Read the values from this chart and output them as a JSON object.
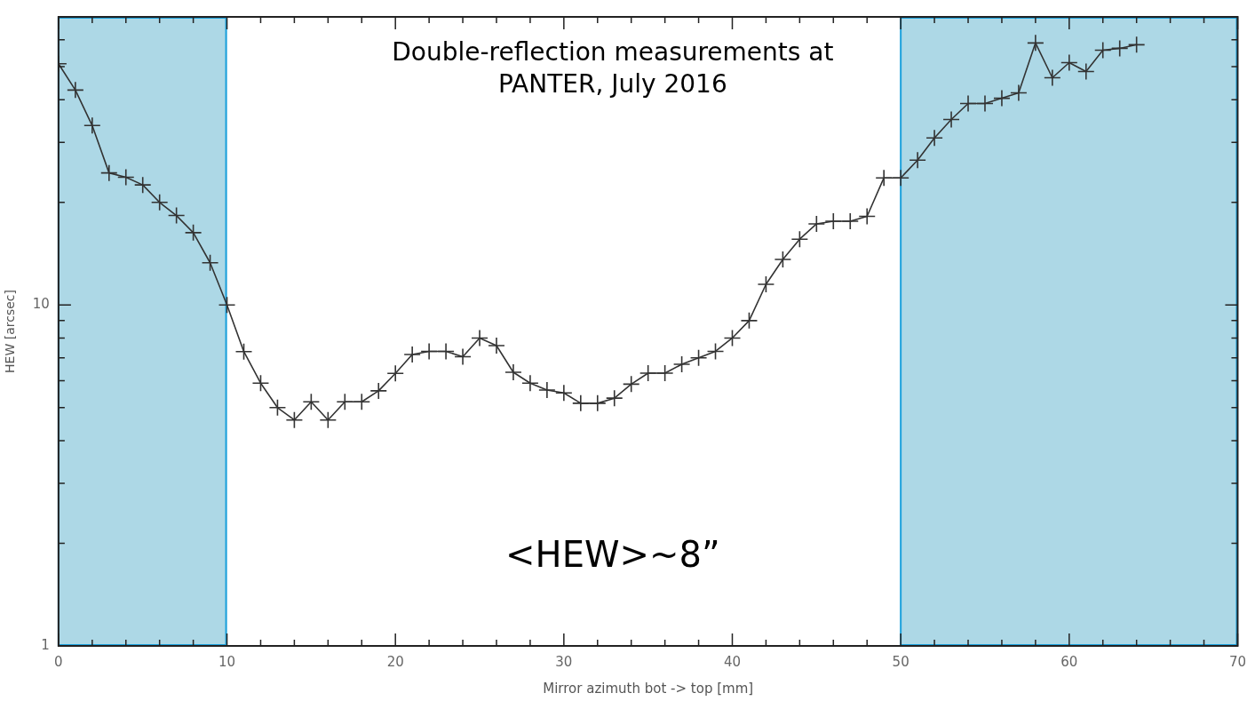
{
  "chart_data": {
    "type": "line",
    "title": "Double-reflection measurements at PANTER, July 2016",
    "xlabel": "Mirror azimuth bot -> top [mm]",
    "ylabel": "HEW [arcsec]",
    "annotations": [
      "<HEW>~8”"
    ],
    "x": [
      0,
      1,
      2,
      3,
      4,
      5,
      6,
      7,
      8,
      9,
      10,
      11,
      12,
      13,
      14,
      15,
      16,
      17,
      18,
      19,
      20,
      21,
      22,
      23,
      24,
      25,
      26,
      27,
      28,
      29,
      30,
      31,
      32,
      33,
      34,
      35,
      36,
      37,
      38,
      39,
      40,
      41,
      42,
      43,
      44,
      45,
      46,
      47,
      48,
      49,
      50,
      51,
      52,
      53,
      54,
      55,
      56,
      57,
      58,
      59,
      60,
      61,
      62,
      63,
      64
    ],
    "series": [
      {
        "color": "#333333",
        "values": [
          51,
          42.7,
          33.6,
          24.4,
          23.7,
          22.5,
          20,
          18.3,
          16.3,
          13.3,
          10,
          7.3,
          5.9,
          5,
          4.6,
          5.2,
          4.6,
          5.2,
          5.2,
          5.6,
          6.3,
          7.16,
          7.31,
          7.31,
          7.05,
          8,
          7.6,
          6.35,
          5.9,
          5.63,
          5.52,
          5.15,
          5.15,
          5.33,
          5.86,
          6.31,
          6.31,
          6.7,
          7,
          7.31,
          8,
          9,
          11.5,
          13.6,
          15.6,
          17.3,
          17.6,
          17.6,
          18.2,
          23.6,
          23.6,
          26.6,
          30.9,
          35,
          39,
          39,
          40.4,
          41.9,
          58.7,
          46.4,
          51.4,
          48.4,
          55.9,
          56.6,
          58
        ]
      }
    ],
    "bands": [
      {
        "axis": "x",
        "from": 0,
        "to": 10,
        "color": "#add8e6"
      },
      {
        "axis": "x",
        "from": 50,
        "to": 70,
        "color": "#add8e6"
      }
    ],
    "log": "y",
    "marker": "cross",
    "line_style": "solid",
    "grid": false,
    "legend": false,
    "xlim": [
      0,
      70
    ],
    "ylim": [
      1,
      70
    ],
    "xticks": [
      0,
      {
        "value": 2,
        "label": null
      },
      {
        "value": 4,
        "label": null
      },
      {
        "value": 6,
        "label": null
      },
      {
        "value": 8,
        "label": null
      },
      10,
      {
        "value": 12,
        "label": null
      },
      {
        "value": 14,
        "label": null
      },
      {
        "value": 16,
        "label": null
      },
      {
        "value": 18,
        "label": null
      },
      20,
      {
        "value": 22,
        "label": null
      },
      {
        "value": 24,
        "label": null
      },
      {
        "value": 26,
        "label": null
      },
      {
        "value": 28,
        "label": null
      },
      30,
      {
        "value": 32,
        "label": null
      },
      {
        "value": 34,
        "label": null
      },
      {
        "value": 36,
        "label": null
      },
      {
        "value": 38,
        "label": null
      },
      40,
      {
        "value": 42,
        "label": null
      },
      {
        "value": 44,
        "label": null
      },
      {
        "value": 46,
        "label": null
      },
      {
        "value": 48,
        "label": null
      },
      50,
      {
        "value": 52,
        "label": null
      },
      {
        "value": 54,
        "label": null
      },
      {
        "value": 56,
        "label": null
      },
      {
        "value": 58,
        "label": null
      },
      60,
      {
        "value": 62,
        "label": null
      },
      {
        "value": 64,
        "label": null
      },
      {
        "value": 66,
        "label": null
      },
      {
        "value": 68,
        "label": null
      },
      70
    ],
    "yticks": [
      1,
      {
        "value": 2,
        "label": null
      },
      {
        "value": 3,
        "label": null
      },
      {
        "value": 4,
        "label": null
      },
      {
        "value": 5,
        "label": null
      },
      {
        "value": 6,
        "label": null
      },
      {
        "value": 7,
        "label": null
      },
      {
        "value": 8,
        "label": null
      },
      {
        "value": 9,
        "label": null
      },
      10,
      {
        "value": 20,
        "label": null
      },
      {
        "value": 30,
        "label": null
      },
      {
        "value": 40,
        "label": null
      },
      {
        "value": 50,
        "label": null
      },
      {
        "value": 60,
        "label": null
      },
      {
        "value": 70,
        "label": null
      }
    ]
  }
}
